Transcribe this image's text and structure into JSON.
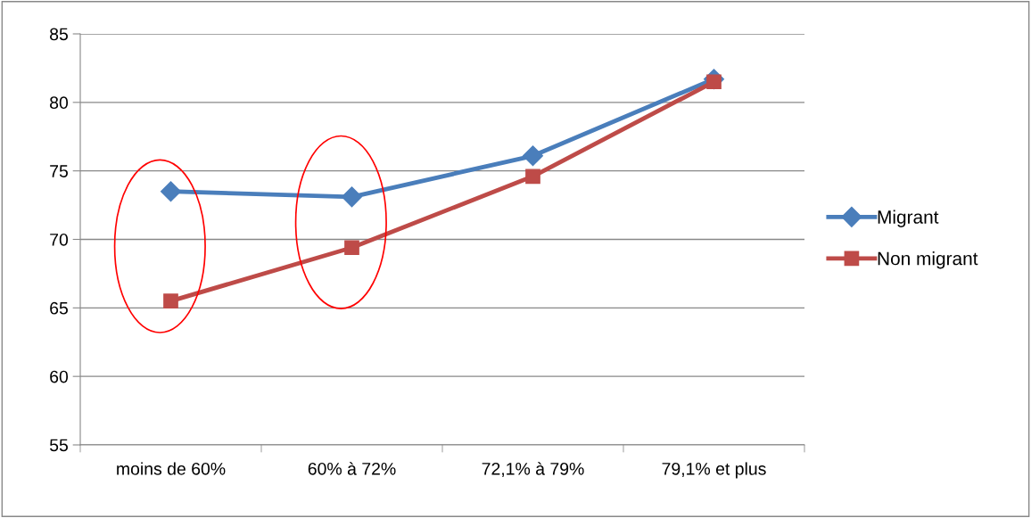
{
  "chart_data": {
    "type": "line",
    "categories": [
      "moins de 60%",
      "60% à 72%",
      "72,1% à 79%",
      "79,1% et plus"
    ],
    "series": [
      {
        "name": "Migrant",
        "color": "#4a7ebb",
        "marker": "diamond",
        "values": [
          73.5,
          73.1,
          76.1,
          81.7
        ]
      },
      {
        "name": "Non migrant",
        "color": "#be4b48",
        "marker": "square",
        "values": [
          65.5,
          69.4,
          74.6,
          81.5
        ]
      }
    ],
    "ylim": [
      55,
      85
    ],
    "yticks": [
      55,
      60,
      65,
      70,
      75,
      80,
      85
    ],
    "grid": "y",
    "legend": "right",
    "line_style": "solid"
  }
}
